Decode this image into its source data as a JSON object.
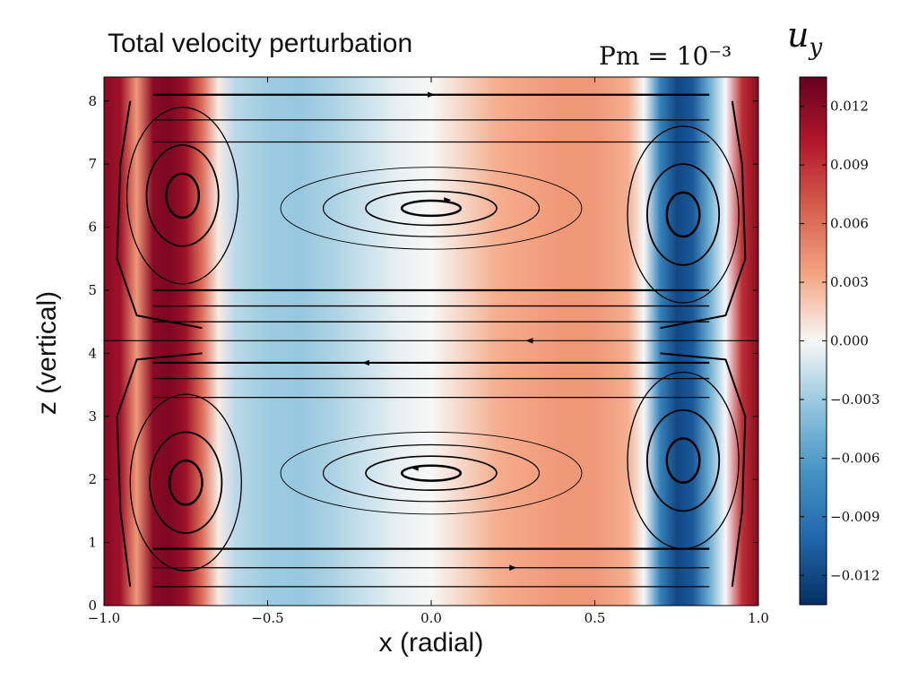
{
  "chart_data": {
    "type": "heatmap",
    "title": "Total velocity perturbation",
    "annotation": "Pm = 10⁻³",
    "xlabel": "x (radial)",
    "ylabel": "z (vertical)",
    "xlim": [
      -1.0,
      1.0
    ],
    "ylim": [
      0,
      8.38
    ],
    "x_ticks": [
      -1.0,
      -0.5,
      0.0,
      0.5,
      1.0
    ],
    "x_tick_labels": [
      "−1.0",
      "−0.5",
      "0.0",
      "0.5",
      "1.0"
    ],
    "y_ticks": [
      0,
      1,
      2,
      3,
      4,
      5,
      6,
      7,
      8
    ],
    "y_tick_labels": [
      "0",
      "1",
      "2",
      "3",
      "4",
      "5",
      "6",
      "7",
      "8"
    ],
    "colorbar": {
      "label": "u_y",
      "label_display": "u",
      "label_sub": "y",
      "colormap": "RdBu_r",
      "range": [
        -0.0135,
        0.0135
      ],
      "ticks": [
        0.012,
        0.009,
        0.006,
        0.003,
        0.0,
        -0.003,
        -0.006,
        -0.009,
        -0.012
      ],
      "tick_labels": [
        "0.012",
        "0.009",
        "0.006",
        "0.003",
        "0.000",
        "−0.003",
        "−0.006",
        "−0.009",
        "−0.012"
      ]
    },
    "field_profile": {
      "description_of_values": "u_y as a function of x (approximately uniform in z)",
      "x": [
        -1.0,
        -0.95,
        -0.9,
        -0.85,
        -0.8,
        -0.75,
        -0.7,
        -0.65,
        -0.6,
        -0.5,
        -0.4,
        -0.3,
        -0.2,
        -0.1,
        0.0,
        0.1,
        0.2,
        0.3,
        0.4,
        0.5,
        0.6,
        0.65,
        0.7,
        0.75,
        0.8,
        0.85,
        0.9,
        0.95,
        1.0
      ],
      "u_y": [
        0.012,
        0.011,
        0.004,
        0.012,
        0.0125,
        0.011,
        0.006,
        0.0005,
        -0.002,
        -0.003,
        -0.0032,
        -0.0025,
        -0.0015,
        -0.0005,
        0.0,
        0.0015,
        0.003,
        0.0035,
        0.004,
        0.004,
        0.003,
        0.0,
        -0.008,
        -0.012,
        -0.011,
        -0.005,
        0.0,
        0.009,
        0.012
      ]
    },
    "streamlines": "two pairs of counter-rotating rolls above and below z ≈ 4.2, with elongated central cells near (0, 6.3) and (0, 2.1) and small cells near x ≈ ±0.75"
  },
  "colors": {
    "red_max": "#67001f",
    "red": "#b2182b",
    "red_mid": "#d6604d",
    "red_light": "#f4a582",
    "white": "#f7f7f7",
    "blue_light": "#92c5de",
    "blue_mid": "#4393c3",
    "blue": "#2166ac",
    "blue_max": "#053061",
    "stream": "#000000"
  }
}
